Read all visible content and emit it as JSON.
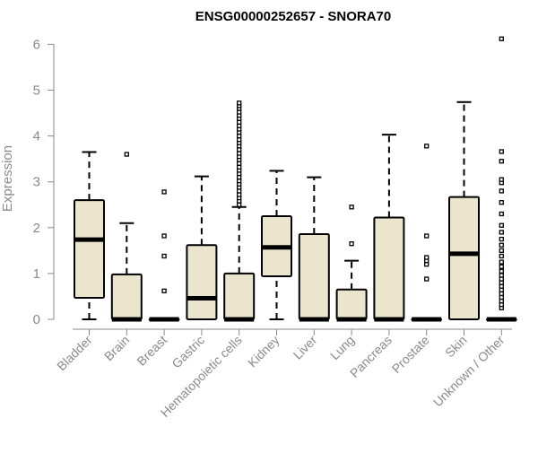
{
  "chart_data": {
    "type": "boxplot",
    "title": "ENSG00000252657 - SNORA70",
    "xlabel": "",
    "ylabel": "Expression",
    "ylim": [
      0,
      6.2
    ],
    "yticks": [
      0,
      1,
      2,
      3,
      4,
      5,
      6
    ],
    "grid": false,
    "legend": "none",
    "box_fill": "#ece5cd",
    "box_stroke": "#000000",
    "categories": [
      "Bladder",
      "Brain",
      "Breast",
      "Gastric",
      "Hematopoietic cells",
      "Kidney",
      "Liver",
      "Lung",
      "Pancreas",
      "Prostate",
      "Skin",
      "Unknown / Other"
    ],
    "boxes": [
      {
        "category": "Bladder",
        "whisker_low": 0,
        "q1": 0.47,
        "median": 1.74,
        "q3": 2.6,
        "whisker_high": 3.65,
        "outliers": []
      },
      {
        "category": "Brain",
        "whisker_low": 0,
        "q1": 0,
        "median": 0,
        "q3": 0.98,
        "whisker_high": 2.1,
        "outliers": [
          3.6
        ]
      },
      {
        "category": "Breast",
        "whisker_low": 0,
        "q1": 0,
        "median": 0,
        "q3": 0,
        "whisker_high": 0,
        "outliers": [
          0.62,
          1.38,
          1.82,
          2.78
        ]
      },
      {
        "category": "Gastric",
        "whisker_low": 0,
        "q1": 0,
        "median": 0.46,
        "q3": 1.62,
        "whisker_high": 3.12,
        "outliers": []
      },
      {
        "category": "Hematopoietic cells",
        "whisker_low": 0,
        "q1": 0,
        "median": 0,
        "q3": 1.0,
        "whisker_high": 2.45,
        "outliers": [
          2.5,
          2.58,
          2.65,
          2.72,
          2.8,
          2.88,
          2.95,
          3.02,
          3.1,
          3.18,
          3.25,
          3.32,
          3.4,
          3.48,
          3.55,
          3.62,
          3.7,
          3.78,
          3.85,
          3.92,
          4.0,
          4.08,
          4.15,
          4.22,
          4.3,
          4.38,
          4.45,
          4.52,
          4.6,
          4.66,
          4.72
        ]
      },
      {
        "category": "Kidney",
        "whisker_low": 0,
        "q1": 0.94,
        "median": 1.57,
        "q3": 2.25,
        "whisker_high": 3.24,
        "outliers": []
      },
      {
        "category": "Liver",
        "whisker_low": 0,
        "q1": 0,
        "median": 0,
        "q3": 1.86,
        "whisker_high": 3.1,
        "outliers": []
      },
      {
        "category": "Lung",
        "whisker_low": 0,
        "q1": 0,
        "median": 0,
        "q3": 0.65,
        "whisker_high": 1.28,
        "outliers": [
          1.65,
          2.45
        ]
      },
      {
        "category": "Pancreas",
        "whisker_low": 0,
        "q1": 0,
        "median": 0,
        "q3": 2.22,
        "whisker_high": 4.03,
        "outliers": []
      },
      {
        "category": "Prostate",
        "whisker_low": 0,
        "q1": 0,
        "median": 0,
        "q3": 0,
        "whisker_high": 0,
        "outliers": [
          0.88,
          1.2,
          1.28,
          1.35,
          1.82,
          3.78
        ]
      },
      {
        "category": "Skin",
        "whisker_low": 0,
        "q1": 0,
        "median": 1.43,
        "q3": 2.67,
        "whisker_high": 4.74,
        "outliers": []
      },
      {
        "category": "Unknown / Other",
        "whisker_low": 0,
        "q1": 0,
        "median": 0,
        "q3": 0,
        "whisker_high": 0,
        "outliers": [
          0.25,
          0.32,
          0.4,
          0.48,
          0.56,
          0.64,
          0.72,
          0.8,
          0.88,
          0.96,
          1.05,
          1.15,
          1.25,
          1.38,
          1.5,
          1.62,
          1.75,
          1.9,
          2.05,
          2.3,
          2.55,
          2.8,
          2.98,
          3.05,
          3.45,
          3.66,
          6.12
        ]
      }
    ]
  }
}
